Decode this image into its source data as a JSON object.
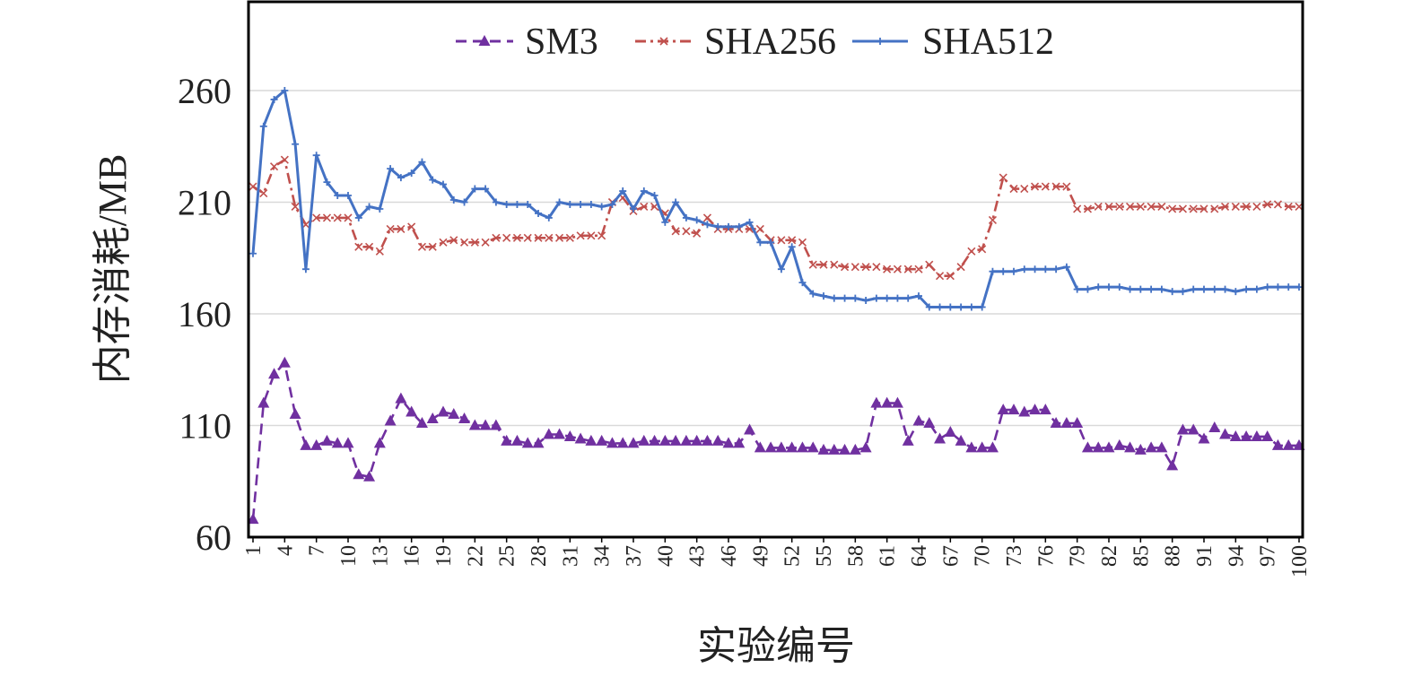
{
  "chart_data": {
    "type": "line",
    "title": "",
    "xlabel": "实验编号",
    "ylabel": "内存消耗/MB",
    "ylim": [
      60,
      260
    ],
    "yticks": [
      60,
      110,
      160,
      210,
      260
    ],
    "xlim": [
      1,
      100
    ],
    "xtick_labels": [
      "1",
      "4",
      "7",
      "10",
      "13",
      "16",
      "19",
      "22",
      "25",
      "28",
      "31",
      "34",
      "37",
      "40",
      "43",
      "46",
      "49",
      "52",
      "55",
      "58",
      "61",
      "64",
      "67",
      "70",
      "73",
      "76",
      "79",
      "82",
      "85",
      "88",
      "91",
      "94",
      "97",
      "100"
    ],
    "grid": "horizontal",
    "legend_position": "top-center",
    "series": [
      {
        "name": "SM3",
        "color": "#7030A0",
        "marker": "triangle",
        "line_style": "dashed",
        "values": [
          68,
          120,
          133,
          138,
          115,
          101,
          101,
          103,
          102,
          102,
          88,
          87,
          102,
          112,
          122,
          116,
          111,
          113,
          116,
          115,
          113,
          110,
          110,
          110,
          103,
          103,
          102,
          102,
          106,
          106,
          105,
          104,
          103,
          103,
          102,
          102,
          102,
          103,
          103,
          103,
          103,
          103,
          103,
          103,
          103,
          102,
          102,
          108,
          100,
          100,
          100,
          100,
          100,
          100,
          99,
          99,
          99,
          99,
          100,
          120,
          120,
          120,
          103,
          112,
          111,
          104,
          107,
          103,
          100,
          100,
          100,
          117,
          117,
          116,
          117,
          117,
          111,
          111,
          111,
          100,
          100,
          100,
          101,
          100,
          99,
          100,
          100,
          92,
          108,
          108,
          104,
          109,
          106,
          105,
          105,
          105,
          105,
          101,
          101,
          101
        ]
      },
      {
        "name": "SHA256",
        "color": "#C0504D",
        "marker": "x",
        "line_style": "dash-dot",
        "values": [
          217,
          214,
          226,
          229,
          208,
          200,
          203,
          203,
          203,
          203,
          190,
          190,
          188,
          198,
          198,
          199,
          190,
          190,
          192,
          193,
          192,
          192,
          192,
          194,
          194,
          194,
          194,
          194,
          194,
          194,
          194,
          195,
          195,
          195,
          210,
          212,
          206,
          208,
          208,
          205,
          197,
          197,
          196,
          203,
          198,
          198,
          198,
          198,
          198,
          193,
          193,
          193,
          192,
          182,
          182,
          182,
          181,
          181,
          181,
          181,
          180,
          180,
          180,
          180,
          182,
          177,
          177,
          181,
          188,
          189,
          202,
          221,
          216,
          216,
          217,
          217,
          217,
          217,
          207,
          207,
          208,
          208,
          208,
          208,
          208,
          208,
          208,
          207,
          207,
          207,
          207,
          207,
          208,
          208,
          208,
          208,
          209,
          209,
          208,
          208
        ]
      },
      {
        "name": "SHA512",
        "color": "#4472C4",
        "marker": "plus",
        "line_style": "solid",
        "values": [
          187,
          244,
          256,
          260,
          236,
          180,
          231,
          219,
          213,
          213,
          203,
          208,
          207,
          225,
          221,
          223,
          228,
          220,
          218,
          211,
          210,
          216,
          216,
          210,
          209,
          209,
          209,
          205,
          203,
          210,
          209,
          209,
          209,
          208,
          209,
          215,
          207,
          215,
          213,
          201,
          210,
          203,
          202,
          200,
          199,
          199,
          199,
          201,
          192,
          192,
          180,
          190,
          174,
          169,
          168,
          167,
          167,
          167,
          166,
          167,
          167,
          167,
          167,
          168,
          163,
          163,
          163,
          163,
          163,
          163,
          179,
          179,
          179,
          180,
          180,
          180,
          180,
          181,
          171,
          171,
          172,
          172,
          172,
          171,
          171,
          171,
          171,
          170,
          170,
          171,
          171,
          171,
          171,
          170,
          171,
          171,
          172,
          172,
          172,
          172
        ]
      }
    ]
  }
}
